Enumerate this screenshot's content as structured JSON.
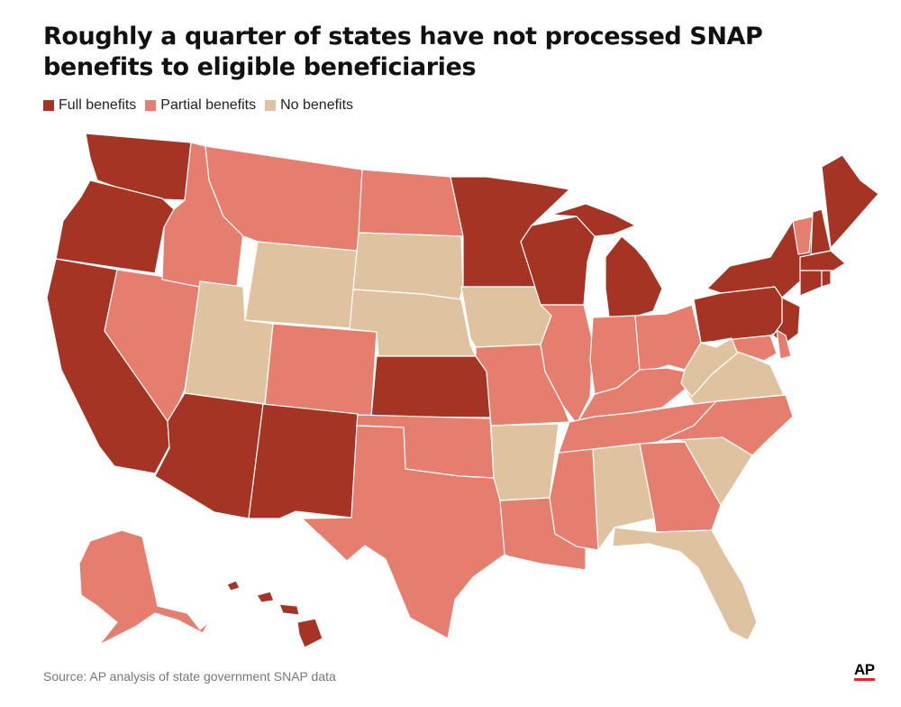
{
  "title": "Roughly a quarter of states have not processed SNAP benefits to eligible beneficiaries",
  "legend": [
    {
      "label": "Full benefits",
      "color": "#a63424"
    },
    {
      "label": "Partial benefits",
      "color": "#e57e6f"
    },
    {
      "label": "No benefits",
      "color": "#dfc3a0"
    }
  ],
  "source": "Source: AP analysis of state government SNAP data",
  "logo": "AP",
  "colors": {
    "full": "#a63424",
    "partial": "#e57e6f",
    "none": "#dfc3a0"
  },
  "state_status": {
    "WA": "full",
    "OR": "full",
    "CA": "full",
    "AZ": "full",
    "NM": "full",
    "KS": "full",
    "MN": "full",
    "WI": "full",
    "MI": "full",
    "NY": "full",
    "PA": "full",
    "NJ": "full",
    "ME": "full",
    "NH": "full",
    "MA": "full",
    "CT": "full",
    "RI": "full",
    "HI": "full",
    "ID": "partial",
    "MT": "partial",
    "ND": "partial",
    "NV": "partial",
    "CO": "partial",
    "TX": "partial",
    "OK": "partial",
    "MO": "partial",
    "IL": "partial",
    "IN": "partial",
    "OH": "partial",
    "KY": "partial",
    "TN": "partial",
    "LA": "partial",
    "MS": "partial",
    "GA": "partial",
    "NC": "partial",
    "MD": "partial",
    "DE": "partial",
    "VT": "partial",
    "AK": "partial",
    "WY": "none",
    "UT": "none",
    "SD": "none",
    "NE": "none",
    "IA": "none",
    "AR": "none",
    "AL": "none",
    "FL": "none",
    "SC": "none",
    "VA": "none",
    "WV": "none"
  }
}
